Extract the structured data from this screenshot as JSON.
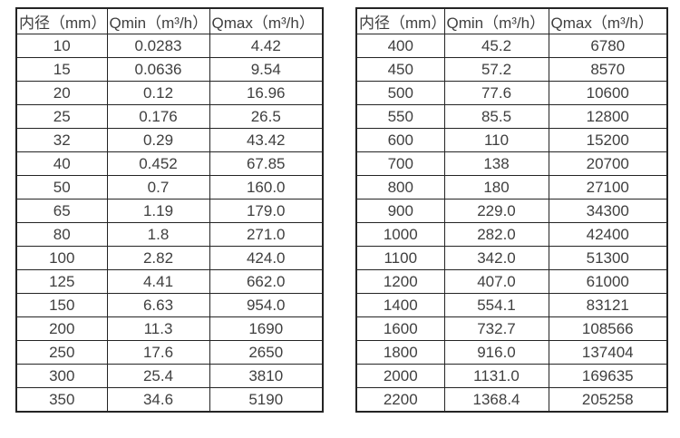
{
  "page": {
    "background_color": "#ffffff",
    "text_color": "#3f3f3f",
    "border_color": "#242424"
  },
  "tables": [
    {
      "name": "flow-spec-small-diameters",
      "headers": [
        "内径（mm）",
        "Qmin（m³/h）",
        "Qmax（m³/h）"
      ],
      "rows": [
        [
          "10",
          "0.0283",
          "4.42"
        ],
        [
          "15",
          "0.0636",
          "9.54"
        ],
        [
          "20",
          "0.12",
          "16.96"
        ],
        [
          "25",
          "0.176",
          "26.5"
        ],
        [
          "32",
          "0.29",
          "43.42"
        ],
        [
          "40",
          "0.452",
          "67.85"
        ],
        [
          "50",
          "0.7",
          "160.0"
        ],
        [
          "65",
          "1.19",
          "179.0"
        ],
        [
          "80",
          "1.8",
          "271.0"
        ],
        [
          "100",
          "2.82",
          "424.0"
        ],
        [
          "125",
          "4.41",
          "662.0"
        ],
        [
          "150",
          "6.63",
          "954.0"
        ],
        [
          "200",
          "11.3",
          "1690"
        ],
        [
          "250",
          "17.6",
          "2650"
        ],
        [
          "300",
          "25.4",
          "3810"
        ],
        [
          "350",
          "34.6",
          "5190"
        ]
      ]
    },
    {
      "name": "flow-spec-large-diameters",
      "headers": [
        "内径（mm）",
        "Qmin（m³/h）",
        "Qmax（m³/h）"
      ],
      "rows": [
        [
          "400",
          "45.2",
          "6780"
        ],
        [
          "450",
          "57.2",
          "8570"
        ],
        [
          "500",
          "77.6",
          "10600"
        ],
        [
          "550",
          "85.5",
          "12800"
        ],
        [
          "600",
          "110",
          "15200"
        ],
        [
          "700",
          "138",
          "20700"
        ],
        [
          "800",
          "180",
          "27100"
        ],
        [
          "900",
          "229.0",
          "34300"
        ],
        [
          "1000",
          "282.0",
          "42400"
        ],
        [
          "1100",
          "342.0",
          "51300"
        ],
        [
          "1200",
          "407.0",
          "61000"
        ],
        [
          "1400",
          "554.1",
          "83121"
        ],
        [
          "1600",
          "732.7",
          "108566"
        ],
        [
          "1800",
          "916.0",
          "137404"
        ],
        [
          "2000",
          "1131.0",
          "169635"
        ],
        [
          "2200",
          "1368.4",
          "205258"
        ]
      ]
    }
  ]
}
